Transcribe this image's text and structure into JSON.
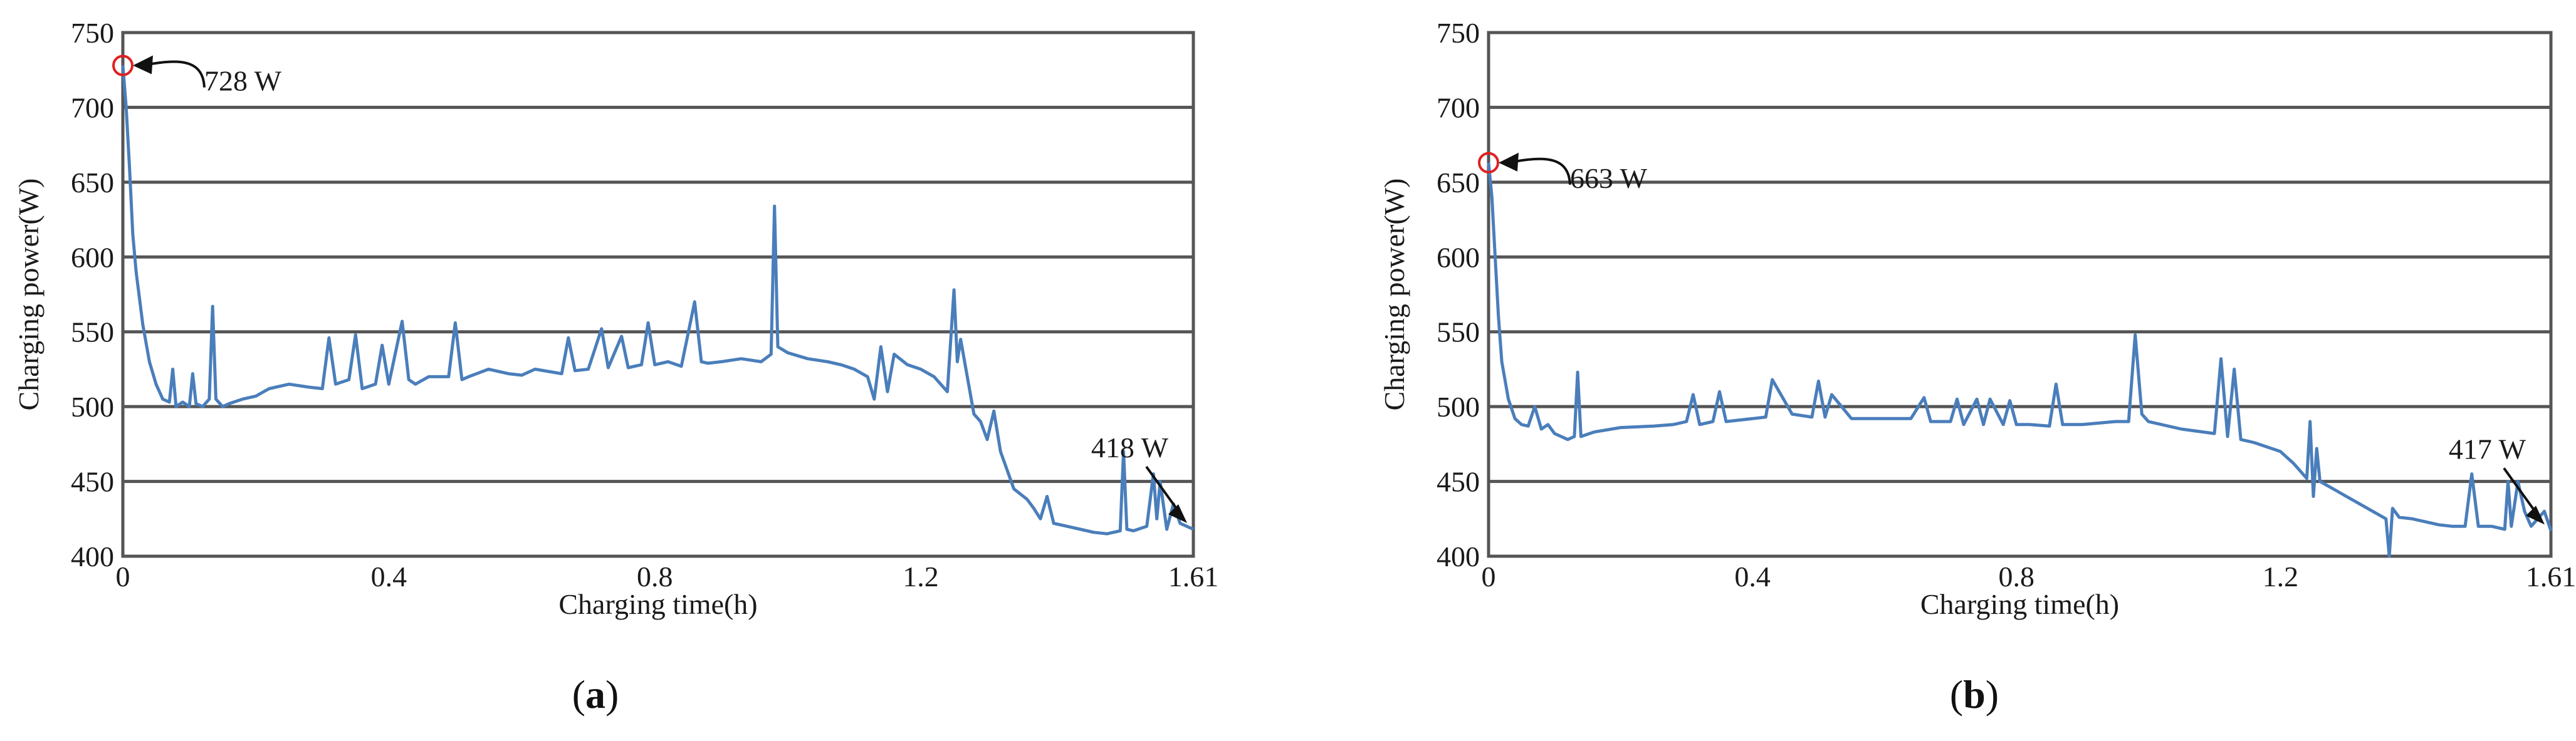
{
  "chart_data": [
    {
      "type": "line",
      "panel_label": "a",
      "title": "",
      "xlabel": "Charging time(h)",
      "ylabel": "Charging power(W)",
      "xlim": [
        0,
        1.61
      ],
      "ylim": [
        400,
        750
      ],
      "x_ticks": [
        "0",
        "0.4",
        "0.8",
        "1.2",
        "1.61"
      ],
      "y_ticks": [
        "400",
        "450",
        "500",
        "550",
        "600",
        "650",
        "700",
        "750"
      ],
      "grid": "horizontal",
      "series": [
        {
          "color": "#4a7ebb",
          "x": [
            0,
            0.005,
            0.01,
            0.015,
            0.02,
            0.03,
            0.04,
            0.05,
            0.06,
            0.07,
            0.075,
            0.08,
            0.09,
            0.1,
            0.105,
            0.11,
            0.12,
            0.13,
            0.135,
            0.14,
            0.15,
            0.16,
            0.18,
            0.2,
            0.22,
            0.25,
            0.28,
            0.3,
            0.31,
            0.32,
            0.34,
            0.35,
            0.36,
            0.38,
            0.39,
            0.4,
            0.42,
            0.43,
            0.44,
            0.46,
            0.49,
            0.5,
            0.51,
            0.52,
            0.55,
            0.58,
            0.6,
            0.62,
            0.66,
            0.67,
            0.68,
            0.7,
            0.72,
            0.73,
            0.75,
            0.76,
            0.78,
            0.79,
            0.8,
            0.82,
            0.84,
            0.86,
            0.87,
            0.88,
            0.9,
            0.93,
            0.96,
            0.975,
            0.98,
            0.985,
            1.0,
            1.03,
            1.06,
            1.08,
            1.1,
            1.12,
            1.13,
            1.14,
            1.15,
            1.16,
            1.18,
            1.2,
            1.22,
            1.24,
            1.25,
            1.255,
            1.26,
            1.27,
            1.28,
            1.29,
            1.3,
            1.31,
            1.32,
            1.34,
            1.36,
            1.37,
            1.38,
            1.39,
            1.4,
            1.42,
            1.44,
            1.46,
            1.48,
            1.5,
            1.505,
            1.51,
            1.52,
            1.54,
            1.55,
            1.555,
            1.56,
            1.57,
            1.58,
            1.59,
            1.6,
            1.61
          ],
          "y": [
            728,
            700,
            660,
            615,
            590,
            555,
            530,
            515,
            505,
            503,
            525,
            500,
            503,
            500,
            522,
            502,
            500,
            505,
            567,
            505,
            500,
            502,
            505,
            507,
            512,
            515,
            513,
            512,
            546,
            515,
            518,
            548,
            512,
            515,
            541,
            515,
            557,
            518,
            515,
            520,
            520,
            556,
            518,
            520,
            525,
            522,
            521,
            525,
            522,
            546,
            524,
            525,
            552,
            526,
            547,
            526,
            528,
            556,
            528,
            530,
            527,
            570,
            530,
            529,
            530,
            532,
            530,
            535,
            634,
            540,
            536,
            532,
            530,
            528,
            525,
            520,
            505,
            540,
            510,
            535,
            528,
            525,
            520,
            510,
            578,
            530,
            545,
            520,
            495,
            490,
            478,
            497,
            470,
            445,
            438,
            432,
            425,
            440,
            422,
            420,
            418,
            416,
            415,
            417,
            470,
            418,
            417,
            420,
            455,
            425,
            450,
            418,
            435,
            422,
            420,
            418
          ]
        }
      ],
      "annotations": [
        {
          "text": "728 W",
          "x": 0,
          "y": 728,
          "marker": "circle"
        },
        {
          "text": "418 W",
          "x": 1.61,
          "y": 418,
          "marker": "arrow"
        }
      ]
    },
    {
      "type": "line",
      "panel_label": "b",
      "title": "",
      "xlabel": "Charging time(h)",
      "ylabel": "Charging power(W)",
      "xlim": [
        0,
        1.61
      ],
      "ylim": [
        400,
        750
      ],
      "x_ticks": [
        "0",
        "0.4",
        "0.8",
        "1.2",
        "1.61"
      ],
      "y_ticks": [
        "400",
        "450",
        "500",
        "550",
        "600",
        "650",
        "700",
        "750"
      ],
      "grid": "horizontal",
      "series": [
        {
          "color": "#4a7ebb",
          "x": [
            0,
            0.005,
            0.01,
            0.015,
            0.02,
            0.03,
            0.04,
            0.05,
            0.06,
            0.07,
            0.08,
            0.09,
            0.1,
            0.11,
            0.12,
            0.13,
            0.135,
            0.14,
            0.16,
            0.2,
            0.25,
            0.28,
            0.3,
            0.31,
            0.32,
            0.34,
            0.35,
            0.36,
            0.4,
            0.42,
            0.43,
            0.46,
            0.49,
            0.5,
            0.51,
            0.52,
            0.55,
            0.6,
            0.64,
            0.66,
            0.67,
            0.7,
            0.71,
            0.72,
            0.74,
            0.75,
            0.76,
            0.78,
            0.79,
            0.8,
            0.82,
            0.85,
            0.86,
            0.87,
            0.9,
            0.95,
            0.97,
            0.98,
            0.99,
            1.0,
            1.05,
            1.1,
            1.11,
            1.12,
            1.13,
            1.14,
            1.16,
            1.2,
            1.22,
            1.24,
            1.245,
            1.25,
            1.255,
            1.26,
            1.28,
            1.3,
            1.32,
            1.34,
            1.36,
            1.365,
            1.37,
            1.38,
            1.4,
            1.42,
            1.44,
            1.46,
            1.48,
            1.49,
            1.5,
            1.52,
            1.54,
            1.545,
            1.55,
            1.56,
            1.57,
            1.58,
            1.59,
            1.6,
            1.61
          ],
          "y": [
            663,
            640,
            600,
            560,
            530,
            505,
            492,
            488,
            487,
            500,
            485,
            488,
            482,
            480,
            478,
            480,
            523,
            480,
            483,
            486,
            487,
            488,
            490,
            508,
            488,
            490,
            510,
            490,
            492,
            493,
            518,
            495,
            493,
            517,
            493,
            508,
            492,
            492,
            492,
            506,
            490,
            490,
            505,
            488,
            505,
            488,
            505,
            488,
            504,
            488,
            488,
            487,
            515,
            488,
            488,
            490,
            490,
            548,
            495,
            490,
            485,
            482,
            532,
            480,
            525,
            478,
            476,
            470,
            462,
            452,
            490,
            440,
            472,
            450,
            445,
            440,
            435,
            430,
            425,
            400,
            432,
            426,
            425,
            423,
            421,
            420,
            420,
            455,
            420,
            420,
            418,
            450,
            420,
            450,
            430,
            420,
            425,
            430,
            417
          ]
        }
      ],
      "annotations": [
        {
          "text": "663 W",
          "x": 0,
          "y": 663,
          "marker": "circle"
        },
        {
          "text": "417 W",
          "x": 1.61,
          "y": 417,
          "marker": "arrow"
        }
      ]
    }
  ]
}
